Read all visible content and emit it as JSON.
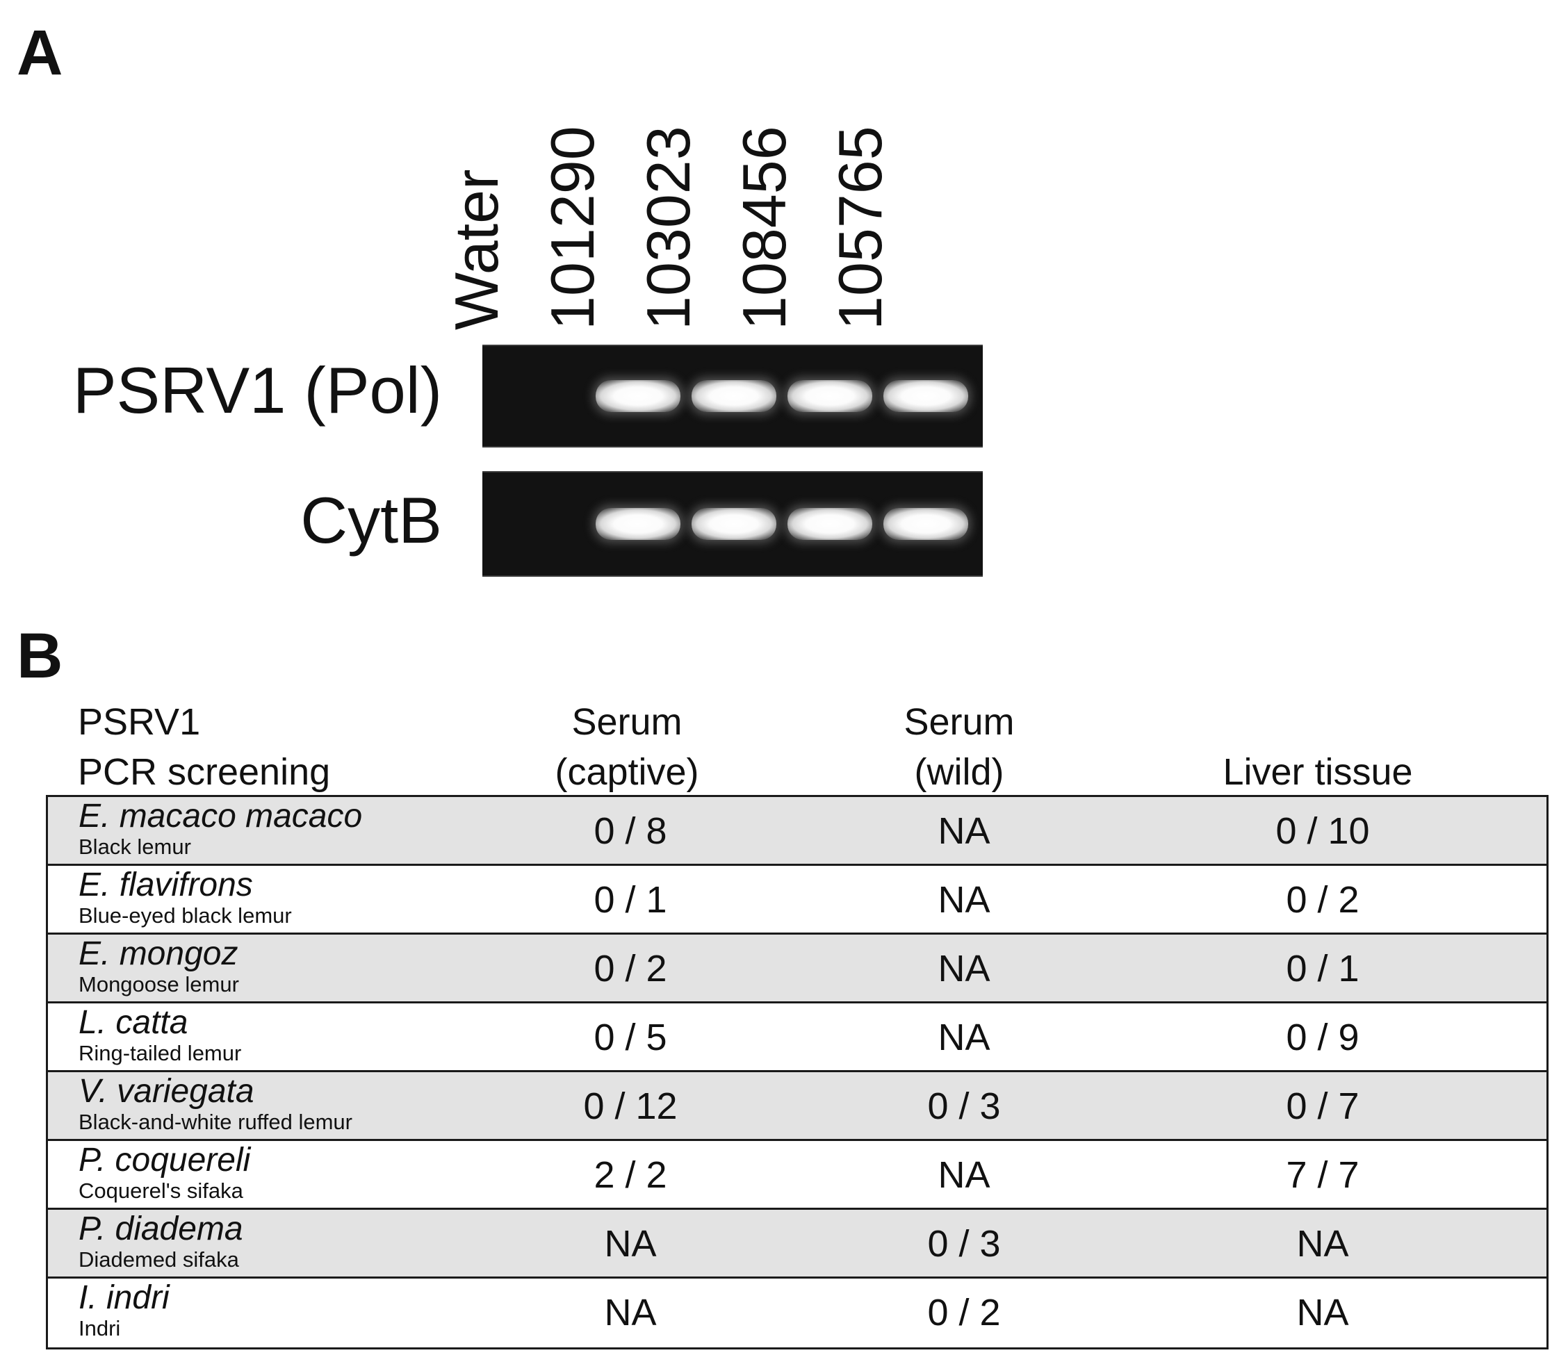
{
  "panel_a": {
    "letter": "A",
    "lanes": [
      "Water",
      "101290",
      "103023",
      "108456",
      "105765"
    ],
    "rows": [
      {
        "label": "PSRV1 (Pol)",
        "bands": [
          false,
          true,
          true,
          true,
          true
        ]
      },
      {
        "label": "CytB",
        "bands": [
          false,
          true,
          true,
          true,
          true
        ]
      }
    ]
  },
  "panel_b": {
    "letter": "B",
    "header": {
      "title_line1": "PSRV1",
      "title_line2": "PCR screening",
      "captive_line1": "Serum",
      "captive_line2": "(captive)",
      "wild_line1": "Serum",
      "wild_line2": "(wild)",
      "liver": "Liver tissue"
    },
    "rows": [
      {
        "species": "E. macaco macaco",
        "common": "Black lemur",
        "captive": "0 / 8",
        "wild": "NA",
        "liver": "0 / 10",
        "shaded": true
      },
      {
        "species": "E. flavifrons",
        "common": "Blue-eyed black lemur",
        "captive": "0 / 1",
        "wild": "NA",
        "liver": "0 / 2",
        "shaded": false
      },
      {
        "species": "E. mongoz",
        "common": "Mongoose lemur",
        "captive": "0 / 2",
        "wild": "NA",
        "liver": "0 / 1",
        "shaded": true
      },
      {
        "species": "L. catta",
        "common": "Ring-tailed lemur",
        "captive": "0 / 5",
        "wild": "NA",
        "liver": "0 / 9",
        "shaded": false
      },
      {
        "species": "V. variegata",
        "common": "Black-and-white ruffed lemur",
        "captive": "0 / 12",
        "wild": "0 / 3",
        "liver": "0 / 7",
        "shaded": true
      },
      {
        "species": "P. coquereli",
        "common": "Coquerel's sifaka",
        "captive": "2 / 2",
        "wild": "NA",
        "liver": "7 / 7",
        "shaded": false
      },
      {
        "species": "P. diadema",
        "common": "Diademed sifaka",
        "captive": "NA",
        "wild": "0 / 3",
        "liver": "NA",
        "shaded": true
      },
      {
        "species": "I. indri",
        "common": "Indri",
        "captive": "NA",
        "wild": "0 / 2",
        "liver": "NA",
        "shaded": false
      }
    ]
  }
}
